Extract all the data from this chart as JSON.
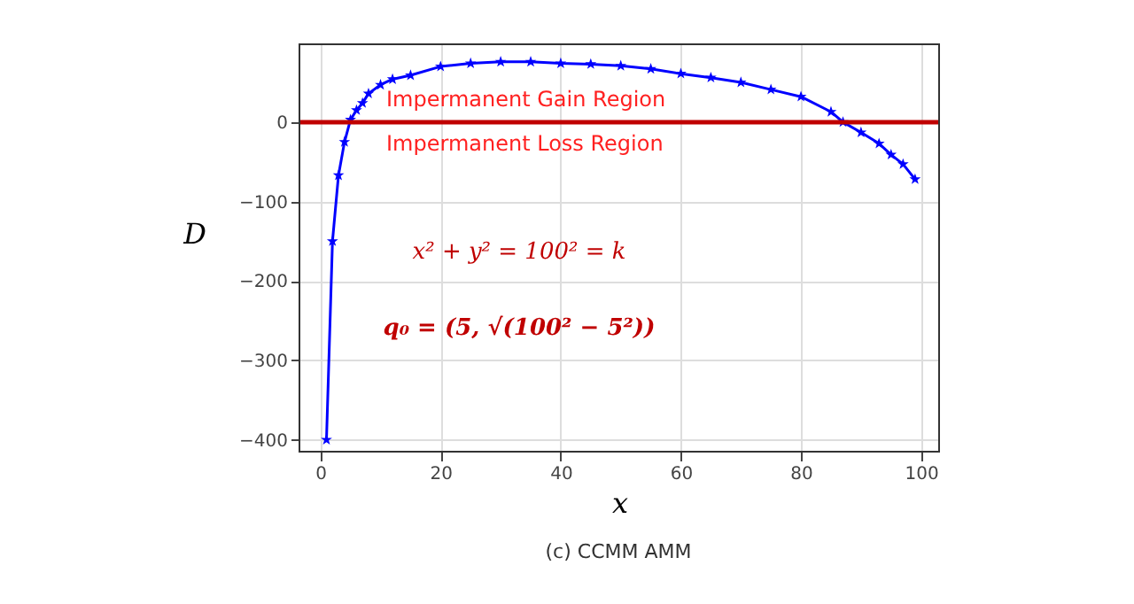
{
  "chart_data": {
    "type": "line",
    "xlabel": "x",
    "ylabel": "D",
    "series": [
      {
        "color": "#0000ff",
        "x": [
          1,
          2,
          3,
          4,
          5,
          6,
          7,
          8,
          10,
          12,
          15,
          20,
          25,
          30,
          35,
          40,
          45,
          50,
          55,
          60,
          65,
          70,
          75,
          80,
          85,
          87,
          90,
          93,
          95,
          97,
          99
        ],
        "values": [
          -400,
          -150,
          -67,
          -25,
          3,
          15,
          24,
          36,
          47,
          54,
          59,
          70,
          74,
          76,
          76,
          74,
          73,
          71,
          67,
          61,
          56,
          50,
          41,
          32,
          13,
          0,
          -13,
          -27,
          -41,
          -53,
          -72
        ]
      }
    ],
    "xlim": [
      -3.5,
      103
    ],
    "ylim": [
      -415,
      98
    ],
    "xticks": [
      0,
      20,
      40,
      60,
      80,
      100
    ],
    "yticks": [
      -400,
      -300,
      -200,
      -100,
      0
    ],
    "grid": true,
    "marker": "star",
    "line_style": "solid",
    "ref_lines": [
      {
        "axis": "y",
        "value": 0,
        "color": "#c00000",
        "line_style": "solid"
      }
    ],
    "annotations": [
      "Impermanent Gain Region",
      "Impermanent Loss Region",
      "x² + y² = 100² = k",
      "q₀ = (5, √(100² − 5²))",
      "(c) CCMM AMM"
    ]
  }
}
